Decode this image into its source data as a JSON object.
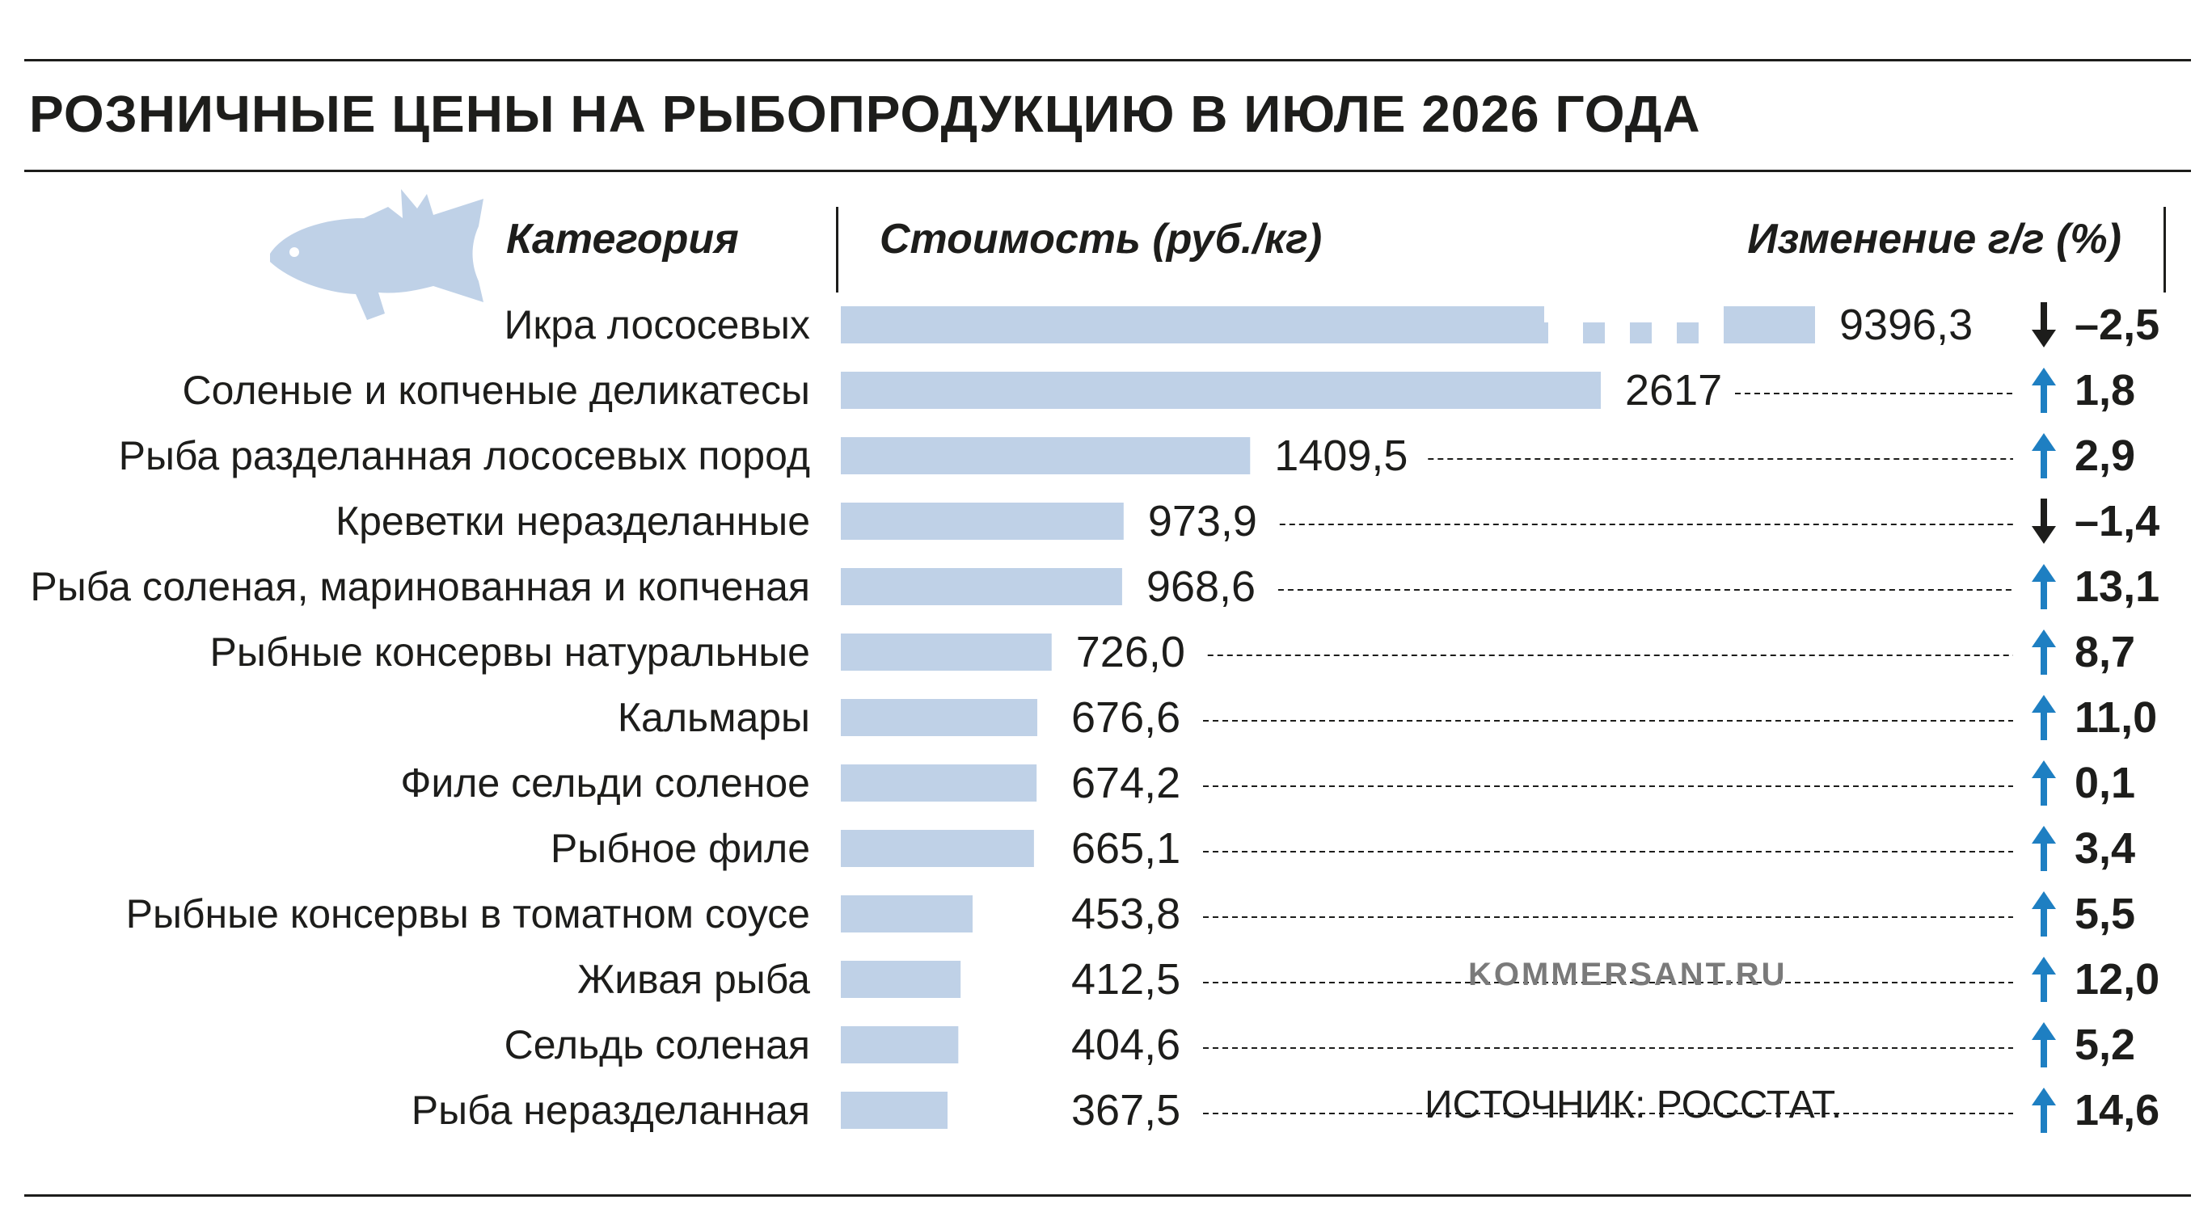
{
  "title": "РОЗНИЧНЫЕ ЦЕНЫ НА РЫБОПРОДУКЦИЮ В ИЮЛЕ 2026 ГОДА",
  "headers": {
    "category": "Категория",
    "cost": "Стоимость (руб./кг)",
    "change": "Изменение г/г (%)"
  },
  "brand": "KOMMERSANT.RU",
  "source": "ИСТОЧНИК: РОССТАТ.",
  "icons": {
    "header_icon": "fish-icon",
    "up_icon": "arrow-up-icon",
    "down_icon": "arrow-down-icon"
  },
  "colors": {
    "bar": "#bfd1e7",
    "up_arrow": "#1e7fc2",
    "down_arrow": "#1d1d1b",
    "text": "#1d1d1b",
    "icon": "#bfd1e7"
  },
  "chart_data": {
    "type": "bar",
    "orientation": "horizontal",
    "axis_break_on_first_bar": true,
    "categories": [
      "Икра лососевых",
      "Соленые и копченые деликатесы",
      "Рыба разделанная лососевых пород",
      "Креветки неразделанные",
      "Рыба соленая, маринованная и копченая",
      "Рыбные консервы натуральные",
      "Кальмары",
      "Филе сельди соленое",
      "Рыбное филе",
      "Рыбные консервы в томатном соусе",
      "Живая рыба",
      "Сельдь соленая",
      "Рыба неразделанная"
    ],
    "values": [
      9396.3,
      2617,
      1409.5,
      973.9,
      968.6,
      726.0,
      676.6,
      674.2,
      665.1,
      453.8,
      412.5,
      404.6,
      367.5
    ],
    "value_labels": [
      "9396,3",
      "2617",
      "1409,5",
      "973,9",
      "968,6",
      "726,0",
      "676,6",
      "674,2",
      "665,1",
      "453,8",
      "412,5",
      "404,6",
      "367,5"
    ],
    "changes": [
      -2.5,
      1.8,
      2.9,
      -1.4,
      13.1,
      8.7,
      11.0,
      0.1,
      3.4,
      5.5,
      12.0,
      5.2,
      14.6
    ],
    "change_labels": [
      "–2,5",
      "1,8",
      "2,9",
      "–1,4",
      "13,1",
      "8,7",
      "11,0",
      "0,1",
      "3,4",
      "5,5",
      "12,0",
      "5,2",
      "14,6"
    ]
  }
}
